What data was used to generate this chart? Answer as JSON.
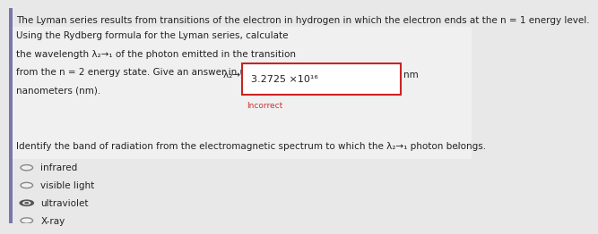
{
  "bg_color": "#e8e8e8",
  "white_bg": "#ffffff",
  "title_text": "The Lyman series results from transitions of the electron in hydrogen in which the electron ends at the n = 1 energy level.",
  "problem_lines": [
    "Using the Rydberg formula for the Lyman series, calculate",
    "the wavelength λ₂→₁ of the photon emitted in the transition",
    "from the n = 2 energy state. Give an answer in units of",
    "nanometers (nm)."
  ],
  "lambda_label": "λ₂→₁ =",
  "box_value": "3.2725 ×10¹⁶",
  "nm_label": "nm",
  "incorrect_text": "Incorrect",
  "incorrect_color": "#cc3333",
  "identify_text": "Identify the band of radiation from the electromagnetic spectrum to which the λ₂→₁ photon belongs.",
  "options": [
    "infrared",
    "visible light",
    "ultraviolet",
    "X-ray"
  ],
  "circle_filled_index": 2,
  "left_bar_color": "#7878aa",
  "box_border_color": "#cc2222",
  "text_color": "#222222",
  "fontsize": 7.5,
  "title_fontsize": 7.5
}
